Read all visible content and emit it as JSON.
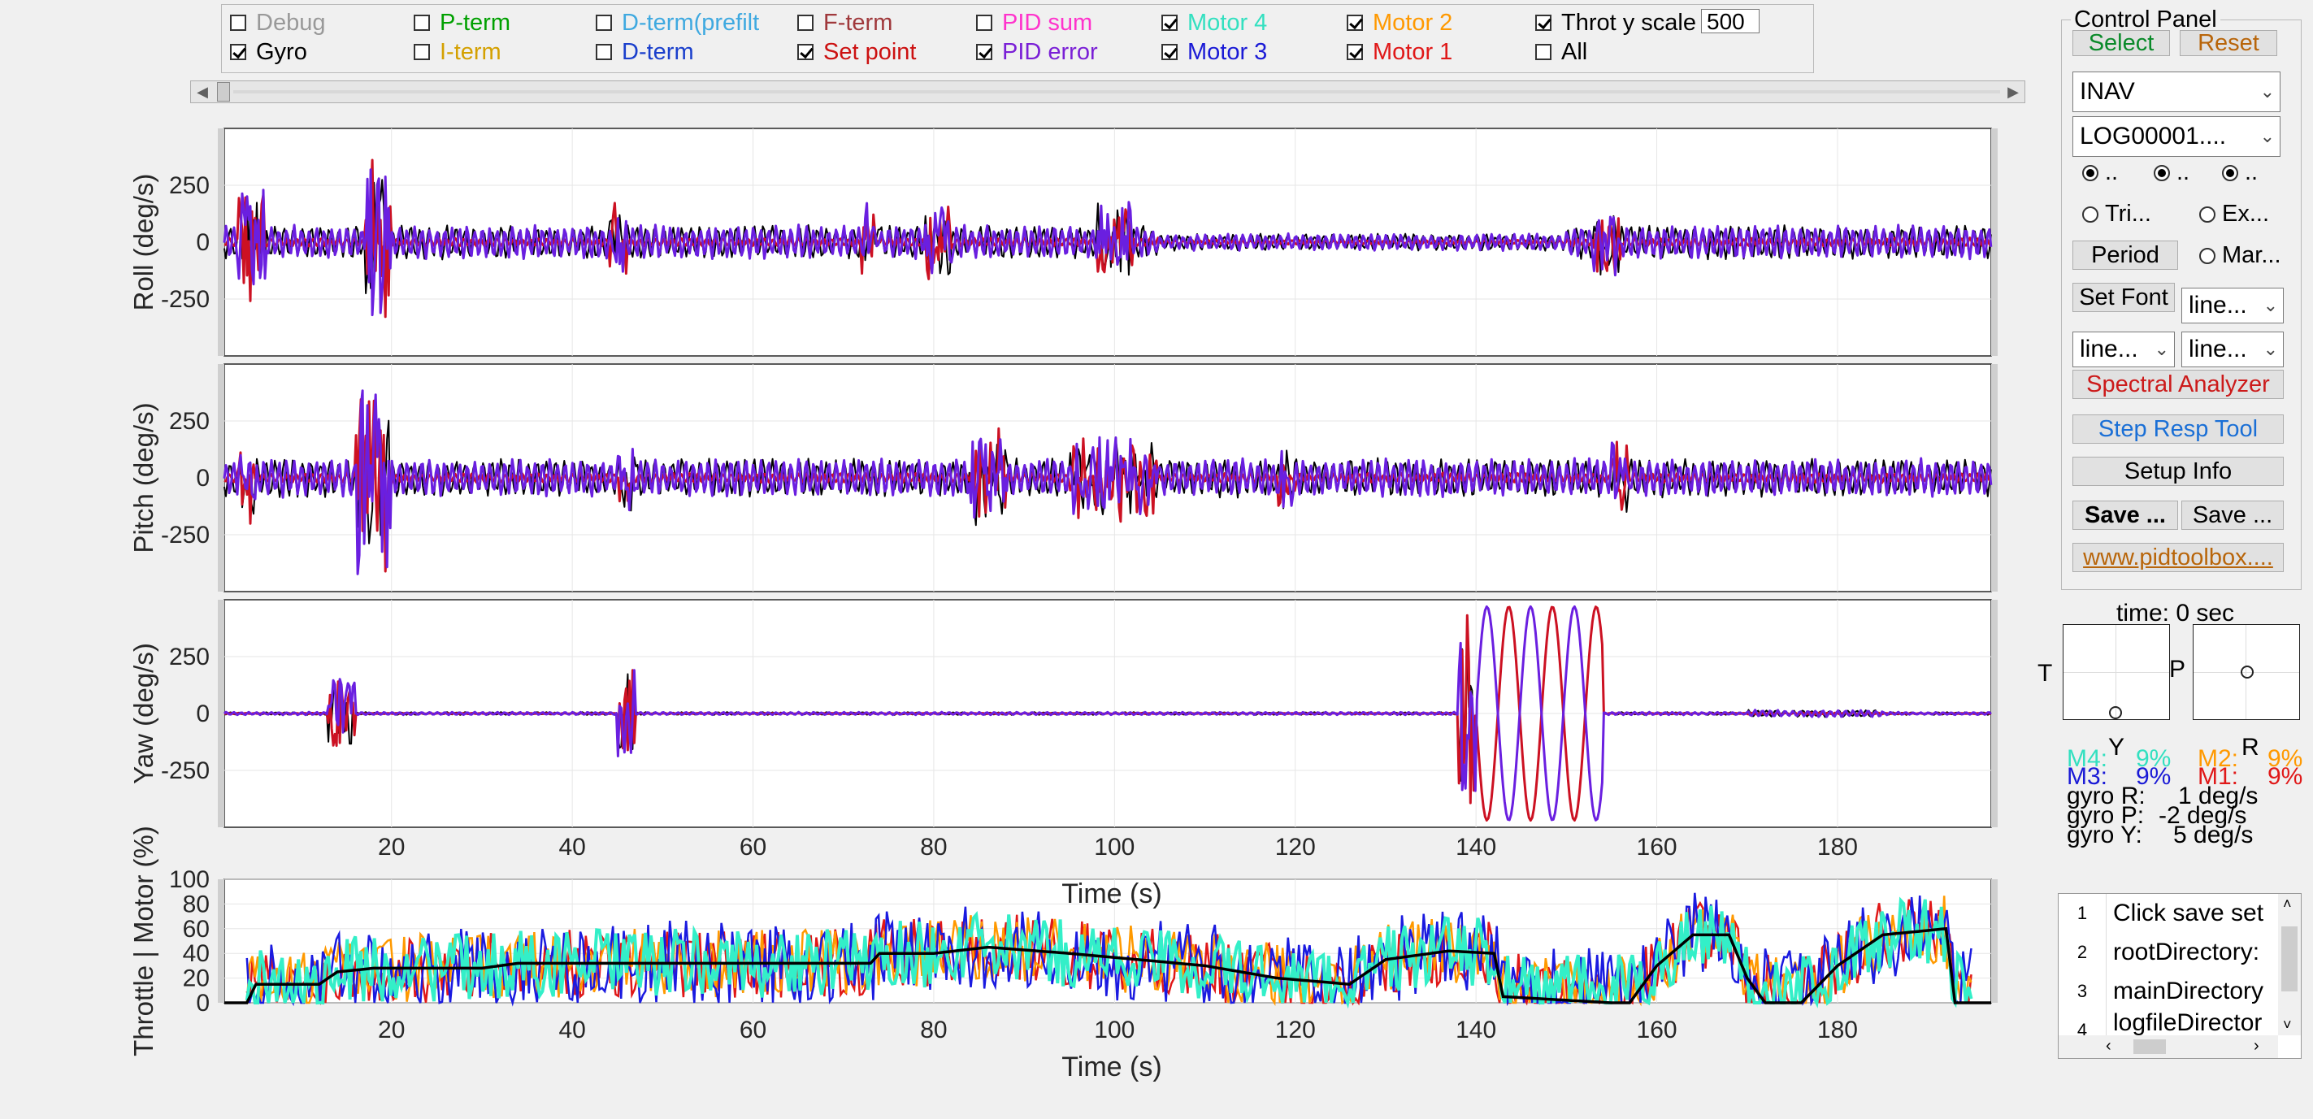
{
  "checkboxes": [
    {
      "label": "Debug",
      "checked": false,
      "color": "#999999"
    },
    {
      "label": "Gyro",
      "checked": true,
      "color": "#000000"
    },
    {
      "label": "P-term",
      "checked": false,
      "color": "#00a000"
    },
    {
      "label": "I-term",
      "checked": false,
      "color": "#d4a000"
    },
    {
      "label": "D-term(prefilt",
      "checked": false,
      "color": "#3fa9e0"
    },
    {
      "label": "D-term",
      "checked": false,
      "color": "#1a3fcc"
    },
    {
      "label": "F-term",
      "checked": false,
      "color": "#a0393c"
    },
    {
      "label": "Set point",
      "checked": true,
      "color": "#cc1111"
    },
    {
      "label": "PID sum",
      "checked": false,
      "color": "#ff33cc"
    },
    {
      "label": "PID error",
      "checked": true,
      "color": "#7a1fd6"
    },
    {
      "label": "Motor 4",
      "checked": true,
      "color": "#33e0c0"
    },
    {
      "label": "Motor 3",
      "checked": true,
      "color": "#1a1ad6"
    },
    {
      "label": "Motor 2",
      "checked": true,
      "color": "#ff9900"
    },
    {
      "label": "Motor 1",
      "checked": true,
      "color": "#e01818"
    },
    {
      "label": "Throt y scale",
      "checked": true,
      "color": "#000000"
    },
    {
      "label": "All",
      "checked": false,
      "color": "#000000"
    }
  ],
  "throttle_scale_value": "500",
  "plots": [
    {
      "ylabel": "Roll (deg/s)",
      "yticks": [
        "250",
        "0",
        "-250"
      ]
    },
    {
      "ylabel": "Pitch (deg/s)",
      "yticks": [
        "250",
        "0",
        "-250"
      ]
    },
    {
      "ylabel": "Yaw (deg/s)",
      "yticks": [
        "250",
        "0",
        "-250"
      ]
    },
    {
      "ylabel": "Throttle | Motor (%)",
      "yticks": [
        "100",
        "80",
        "60",
        "40",
        "20",
        "0"
      ]
    }
  ],
  "xticks": [
    "20",
    "40",
    "60",
    "80",
    "100",
    "120",
    "140",
    "160",
    "180"
  ],
  "xlabel": "Time (s)",
  "control_panel": {
    "title": "Control Panel",
    "select_label": "Select",
    "reset_label": "Reset",
    "firmware": "INAV",
    "logfile": "LOG00001....",
    "radio_row1": [
      "..",
      "..",
      ".."
    ],
    "radio_tri": "Tri...",
    "radio_ex": "Ex...",
    "period_label": "Period",
    "radio_mar": "Mar...",
    "set_font_label": "Set Font",
    "dropdown_line1": "line...",
    "dropdown_line2": "line...",
    "dropdown_line3": "line...",
    "spectral_label": "Spectral Analyzer",
    "step_label": "Step Resp Tool",
    "setup_label": "Setup Info",
    "save1_label": "Save ...",
    "save2_label": "Save ...",
    "web_label": "www.pidtoolbox...."
  },
  "readout": {
    "time": "time: 0 sec",
    "T": "T",
    "P": "P",
    "Y": "Y",
    "R": "R",
    "m4": "M4:",
    "m4v": "9%",
    "m2": "M2:",
    "m2v": "9%",
    "m3": "M3:",
    "m3v": "9%",
    "m1": "M1:",
    "m1v": "9%",
    "gyroR": "gyro R:",
    "gyroRv": "1 deg/s",
    "gyroP": "gyro P:",
    "gyroPv": "-2 deg/s",
    "gyroY": "gyro Y:",
    "gyroYv": "5 deg/s"
  },
  "table_rows": [
    {
      "n": "1",
      "v": "Click save set"
    },
    {
      "n": "2",
      "v": "rootDirectory:"
    },
    {
      "n": "3",
      "v": "mainDirectory"
    },
    {
      "n": "4",
      "v": "logfileDirector"
    }
  ],
  "colors": {
    "setpoint": "#cc1122",
    "pid_error": "#6a1fe0",
    "gyro": "#000000",
    "motor4": "#33efc8",
    "motor3": "#1a1ae0",
    "motor2": "#ff9900",
    "motor1": "#e01818",
    "throttle": "#000000"
  }
}
